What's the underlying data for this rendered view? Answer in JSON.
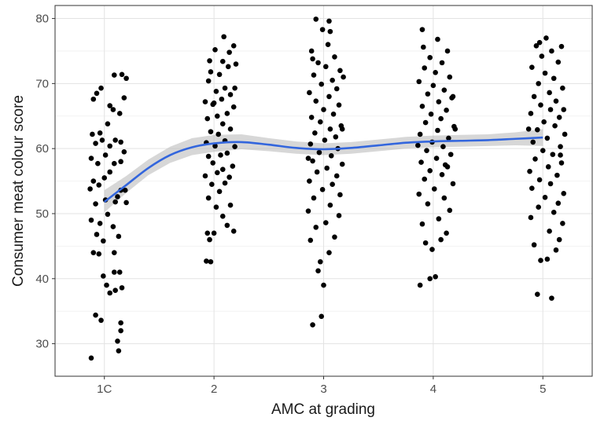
{
  "chart_data": {
    "type": "scatter",
    "title": "",
    "xlabel": "AMC at grading",
    "ylabel": "Consumer meat colour score",
    "categories": [
      "1C",
      "2",
      "3",
      "4",
      "5"
    ],
    "ylim": [
      25,
      82
    ],
    "y_ticks": [
      30,
      40,
      50,
      60,
      70,
      80
    ],
    "grid": true,
    "legend": "none",
    "point_color": "#000000",
    "smooth_color": "#3366dd",
    "band_color": "#bdbdbd",
    "smooth_line": [
      {
        "x": 1.0,
        "y": 51.8,
        "lo": 50.2,
        "hi": 53.6
      },
      {
        "x": 1.2,
        "y": 54.4,
        "lo": 53.2,
        "hi": 55.8
      },
      {
        "x": 1.4,
        "y": 57.0,
        "lo": 55.9,
        "hi": 58.3
      },
      {
        "x": 1.6,
        "y": 59.0,
        "lo": 57.8,
        "hi": 60.3
      },
      {
        "x": 1.8,
        "y": 60.2,
        "lo": 59.0,
        "hi": 61.6
      },
      {
        "x": 2.0,
        "y": 60.8,
        "lo": 59.5,
        "hi": 62.1
      },
      {
        "x": 2.25,
        "y": 61.0,
        "lo": 59.9,
        "hi": 62.2
      },
      {
        "x": 2.5,
        "y": 60.6,
        "lo": 59.6,
        "hi": 61.6
      },
      {
        "x": 2.75,
        "y": 60.1,
        "lo": 59.2,
        "hi": 61.1
      },
      {
        "x": 3.0,
        "y": 59.9,
        "lo": 59.0,
        "hi": 60.8
      },
      {
        "x": 3.25,
        "y": 60.1,
        "lo": 59.2,
        "hi": 61.0
      },
      {
        "x": 3.5,
        "y": 60.5,
        "lo": 59.6,
        "hi": 61.4
      },
      {
        "x": 3.75,
        "y": 60.9,
        "lo": 60.0,
        "hi": 61.8
      },
      {
        "x": 4.0,
        "y": 61.1,
        "lo": 60.2,
        "hi": 62.0
      },
      {
        "x": 4.25,
        "y": 61.2,
        "lo": 60.3,
        "hi": 62.1
      },
      {
        "x": 4.5,
        "y": 61.3,
        "lo": 60.4,
        "hi": 62.2
      },
      {
        "x": 4.75,
        "y": 61.5,
        "lo": 60.5,
        "hi": 62.5
      },
      {
        "x": 5.0,
        "y": 61.7,
        "lo": 60.4,
        "hi": 63.0
      }
    ],
    "series": [
      {
        "category": "1C",
        "points": [
          [
            0.88,
            27.8
          ],
          [
            0.92,
            34.4
          ],
          [
            0.97,
            33.6
          ],
          [
            1.05,
            37.8
          ],
          [
            1.1,
            38.2
          ],
          [
            1.02,
            39.0
          ],
          [
            1.14,
            41.0
          ],
          [
            1.09,
            41.0
          ],
          [
            0.99,
            40.4
          ],
          [
            1.16,
            38.6
          ],
          [
            1.15,
            33.2
          ],
          [
            1.12,
            30.4
          ],
          [
            1.13,
            28.9
          ],
          [
            1.15,
            32.0
          ],
          [
            0.95,
            43.8
          ],
          [
            0.9,
            44.0
          ],
          [
            0.99,
            45.8
          ],
          [
            1.09,
            44.0
          ],
          [
            1.13,
            46.5
          ],
          [
            0.93,
            46.8
          ],
          [
            1.08,
            48.0
          ],
          [
            0.88,
            49.0
          ],
          [
            0.96,
            48.5
          ],
          [
            1.03,
            49.9
          ],
          [
            1.1,
            51.8
          ],
          [
            1.12,
            52.6
          ],
          [
            1.15,
            53.6
          ],
          [
            1.19,
            53.6
          ],
          [
            1.2,
            51.7
          ],
          [
            0.92,
            51.5
          ],
          [
            1.01,
            52.1
          ],
          [
            0.87,
            53.8
          ],
          [
            0.95,
            54.4
          ],
          [
            1.0,
            55.5
          ],
          [
            1.05,
            56.4
          ],
          [
            0.9,
            55.0
          ],
          [
            0.94,
            57.7
          ],
          [
            1.09,
            57.7
          ],
          [
            1.01,
            59.0
          ],
          [
            1.15,
            58.0
          ],
          [
            0.88,
            58.5
          ],
          [
            0.92,
            60.8
          ],
          [
            0.98,
            61.3
          ],
          [
            1.05,
            60.4
          ],
          [
            1.1,
            61.3
          ],
          [
            1.15,
            61.0
          ],
          [
            1.18,
            59.5
          ],
          [
            0.89,
            62.2
          ],
          [
            0.96,
            62.4
          ],
          [
            1.03,
            63.8
          ],
          [
            1.14,
            65.4
          ],
          [
            1.18,
            67.8
          ],
          [
            1.05,
            66.6
          ],
          [
            0.97,
            69.3
          ],
          [
            0.93,
            68.5
          ],
          [
            1.09,
            71.3
          ],
          [
            1.16,
            71.4
          ],
          [
            1.2,
            70.8
          ],
          [
            0.9,
            67.6
          ],
          [
            1.08,
            66.0
          ]
        ]
      },
      {
        "category": "2",
        "points": [
          [
            1.93,
            42.7
          ],
          [
            1.97,
            42.6
          ],
          [
            1.96,
            46.0
          ],
          [
            1.94,
            47.0
          ],
          [
            2.0,
            47.0
          ],
          [
            2.18,
            47.3
          ],
          [
            2.08,
            49.6
          ],
          [
            2.12,
            48.2
          ],
          [
            2.02,
            51.0
          ],
          [
            2.15,
            51.3
          ],
          [
            1.95,
            52.4
          ],
          [
            2.05,
            53.4
          ],
          [
            2.1,
            54.7
          ],
          [
            1.98,
            54.5
          ],
          [
            2.14,
            55.6
          ],
          [
            1.92,
            55.8
          ],
          [
            2.03,
            56.3
          ],
          [
            2.08,
            56.8
          ],
          [
            2.17,
            57.3
          ],
          [
            1.99,
            57.8
          ],
          [
            1.95,
            58.8
          ],
          [
            2.06,
            59.0
          ],
          [
            2.12,
            59.3
          ],
          [
            2.19,
            60.3
          ],
          [
            1.93,
            60.9
          ],
          [
            2.01,
            60.4
          ],
          [
            2.1,
            61.2
          ],
          [
            2.04,
            62.2
          ],
          [
            1.97,
            62.6
          ],
          [
            2.15,
            63.0
          ],
          [
            2.08,
            63.8
          ],
          [
            1.94,
            64.6
          ],
          [
            2.03,
            65.0
          ],
          [
            2.12,
            65.4
          ],
          [
            2.18,
            66.4
          ],
          [
            1.99,
            66.8
          ],
          [
            1.92,
            67.2
          ],
          [
            2.07,
            67.6
          ],
          [
            2.15,
            68.3
          ],
          [
            2.02,
            68.8
          ],
          [
            2.1,
            69.3
          ],
          [
            1.95,
            70.4
          ],
          [
            1.97,
            71.8
          ],
          [
            2.05,
            71.4
          ],
          [
            2.13,
            72.6
          ],
          [
            2.2,
            73.0
          ],
          [
            2.08,
            73.4
          ],
          [
            2.14,
            74.8
          ],
          [
            2.01,
            75.2
          ],
          [
            2.18,
            75.8
          ],
          [
            2.09,
            77.2
          ],
          [
            1.96,
            73.5
          ],
          [
            2.19,
            69.3
          ],
          [
            2.0,
            67.0
          ]
        ]
      },
      {
        "category": "3",
        "points": [
          [
            2.9,
            32.9
          ],
          [
            2.98,
            34.2
          ],
          [
            3.0,
            39.0
          ],
          [
            2.95,
            41.2
          ],
          [
            2.97,
            42.6
          ],
          [
            3.05,
            44.0
          ],
          [
            2.88,
            45.9
          ],
          [
            3.1,
            46.4
          ],
          [
            2.93,
            47.9
          ],
          [
            3.02,
            48.6
          ],
          [
            3.14,
            49.7
          ],
          [
            2.86,
            50.4
          ],
          [
            3.06,
            51.3
          ],
          [
            2.91,
            52.4
          ],
          [
            3.15,
            52.9
          ],
          [
            2.99,
            53.7
          ],
          [
            3.08,
            54.5
          ],
          [
            2.87,
            55.0
          ],
          [
            3.12,
            55.8
          ],
          [
            2.94,
            56.4
          ],
          [
            3.03,
            57.0
          ],
          [
            3.17,
            57.6
          ],
          [
            2.9,
            58.1
          ],
          [
            3.07,
            58.9
          ],
          [
            2.96,
            59.4
          ],
          [
            3.13,
            60.0
          ],
          [
            2.88,
            60.7
          ],
          [
            3.01,
            61.3
          ],
          [
            3.11,
            61.8
          ],
          [
            2.92,
            62.4
          ],
          [
            3.06,
            63.0
          ],
          [
            3.16,
            63.5
          ],
          [
            2.97,
            64.1
          ],
          [
            2.89,
            64.8
          ],
          [
            3.09,
            65.3
          ],
          [
            3.0,
            66.0
          ],
          [
            3.14,
            66.7
          ],
          [
            2.93,
            67.3
          ],
          [
            3.05,
            68.0
          ],
          [
            2.87,
            68.6
          ],
          [
            3.12,
            69.2
          ],
          [
            2.98,
            69.9
          ],
          [
            3.08,
            70.5
          ],
          [
            2.91,
            71.3
          ],
          [
            3.15,
            72.0
          ],
          [
            3.02,
            72.6
          ],
          [
            2.95,
            73.2
          ],
          [
            3.1,
            74.1
          ],
          [
            2.89,
            75.0
          ],
          [
            3.04,
            76.0
          ],
          [
            2.99,
            78.3
          ],
          [
            3.05,
            79.6
          ],
          [
            2.93,
            79.9
          ],
          [
            3.06,
            78.0
          ],
          [
            2.9,
            73.8
          ],
          [
            3.18,
            71.0
          ],
          [
            3.17,
            63.0
          ],
          [
            2.86,
            58.5
          ]
        ]
      },
      {
        "category": "4",
        "points": [
          [
            3.88,
            39.0
          ],
          [
            3.97,
            40.0
          ],
          [
            4.02,
            40.3
          ],
          [
            3.93,
            45.5
          ],
          [
            3.99,
            44.5
          ],
          [
            4.07,
            46.0
          ],
          [
            4.12,
            47.0
          ],
          [
            3.9,
            48.4
          ],
          [
            4.05,
            49.2
          ],
          [
            4.15,
            50.5
          ],
          [
            3.95,
            51.5
          ],
          [
            4.1,
            52.4
          ],
          [
            3.87,
            53.0
          ],
          [
            4.01,
            53.8
          ],
          [
            4.18,
            54.6
          ],
          [
            3.92,
            55.3
          ],
          [
            4.08,
            56.0
          ],
          [
            3.97,
            56.6
          ],
          [
            4.13,
            57.2
          ],
          [
            3.89,
            57.9
          ],
          [
            4.03,
            58.5
          ],
          [
            4.16,
            59.1
          ],
          [
            3.94,
            59.7
          ],
          [
            4.09,
            60.3
          ],
          [
            3.99,
            61.0
          ],
          [
            4.14,
            61.6
          ],
          [
            3.88,
            62.2
          ],
          [
            4.04,
            62.8
          ],
          [
            4.19,
            63.4
          ],
          [
            3.93,
            64.0
          ],
          [
            4.07,
            64.6
          ],
          [
            3.98,
            65.3
          ],
          [
            4.12,
            65.9
          ],
          [
            3.9,
            66.5
          ],
          [
            4.05,
            67.2
          ],
          [
            4.17,
            67.8
          ],
          [
            3.95,
            68.4
          ],
          [
            4.1,
            69.0
          ],
          [
            4.0,
            69.7
          ],
          [
            3.87,
            70.3
          ],
          [
            4.15,
            71.0
          ],
          [
            4.02,
            71.7
          ],
          [
            3.92,
            72.4
          ],
          [
            4.08,
            73.2
          ],
          [
            3.97,
            74.0
          ],
          [
            4.13,
            75.0
          ],
          [
            3.91,
            75.6
          ],
          [
            4.04,
            76.8
          ],
          [
            3.9,
            78.3
          ],
          [
            4.18,
            68.0
          ],
          [
            4.2,
            63.0
          ],
          [
            3.86,
            60.5
          ],
          [
            4.11,
            57.5
          ]
        ]
      },
      {
        "category": "5",
        "points": [
          [
            4.95,
            37.6
          ],
          [
            5.08,
            37.0
          ],
          [
            4.98,
            42.8
          ],
          [
            5.04,
            43.0
          ],
          [
            5.12,
            44.4
          ],
          [
            4.92,
            45.2
          ],
          [
            5.15,
            46.0
          ],
          [
            5.06,
            47.3
          ],
          [
            5.18,
            48.5
          ],
          [
            4.89,
            49.4
          ],
          [
            5.1,
            50.2
          ],
          [
            4.96,
            51.0
          ],
          [
            5.14,
            51.6
          ],
          [
            5.02,
            52.5
          ],
          [
            5.19,
            53.1
          ],
          [
            4.9,
            53.9
          ],
          [
            5.07,
            54.6
          ],
          [
            4.97,
            55.2
          ],
          [
            5.13,
            55.9
          ],
          [
            4.88,
            56.5
          ],
          [
            5.05,
            57.2
          ],
          [
            5.17,
            57.8
          ],
          [
            4.93,
            58.4
          ],
          [
            5.09,
            59.1
          ],
          [
            5.0,
            59.7
          ],
          [
            5.16,
            60.3
          ],
          [
            4.91,
            61.0
          ],
          [
            5.04,
            61.6
          ],
          [
            5.2,
            62.2
          ],
          [
            4.95,
            62.9
          ],
          [
            5.11,
            63.5
          ],
          [
            5.01,
            64.1
          ],
          [
            5.15,
            64.8
          ],
          [
            4.89,
            65.4
          ],
          [
            5.07,
            66.0
          ],
          [
            4.98,
            66.7
          ],
          [
            5.12,
            67.3
          ],
          [
            4.92,
            68.0
          ],
          [
            5.06,
            68.6
          ],
          [
            5.18,
            69.3
          ],
          [
            4.96,
            70.0
          ],
          [
            5.1,
            70.8
          ],
          [
            5.02,
            71.6
          ],
          [
            4.9,
            72.5
          ],
          [
            5.14,
            73.3
          ],
          [
            4.99,
            74.2
          ],
          [
            5.08,
            75.0
          ],
          [
            4.94,
            75.8
          ],
          [
            5.17,
            75.7
          ],
          [
            5.03,
            77.0
          ],
          [
            4.97,
            76.3
          ],
          [
            5.19,
            66.0
          ],
          [
            4.87,
            63.0
          ],
          [
            5.16,
            59.0
          ]
        ]
      }
    ]
  }
}
